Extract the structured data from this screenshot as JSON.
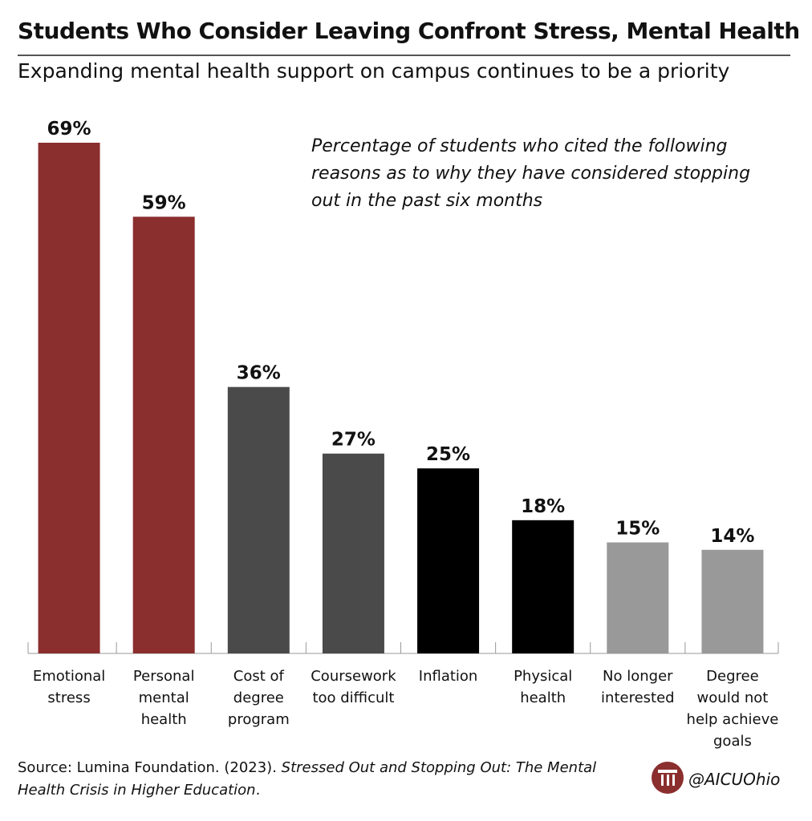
{
  "chart_data": {
    "type": "bar",
    "title": "Students Who Consider Leaving Confront Stress, Mental Health",
    "subtitle": "Expanding mental health support on campus continues to be a priority",
    "annotation": "Percentage of students who cited the following reasons as to why they have considered stopping out in the past six months",
    "categories": [
      [
        "Emotional",
        "stress"
      ],
      [
        "Personal",
        "mental",
        "health"
      ],
      [
        "Cost of",
        "degree",
        "program"
      ],
      [
        "Coursework",
        "too difficult"
      ],
      [
        "Inflation"
      ],
      [
        "Physical",
        "health"
      ],
      [
        "No longer",
        "interested"
      ],
      [
        "Degree",
        "would not",
        "help achieve",
        "goals"
      ]
    ],
    "values": [
      69,
      59,
      36,
      27,
      25,
      18,
      15,
      14
    ],
    "value_labels": [
      "69%",
      "59%",
      "36%",
      "27%",
      "25%",
      "18%",
      "15%",
      "14%"
    ],
    "colors": [
      "#8b2e2e",
      "#8b2e2e",
      "#4a4a4a",
      "#4a4a4a",
      "#000000",
      "#000000",
      "#999999",
      "#999999"
    ],
    "source": {
      "text": "Source: Lumina Foundation. (2023).",
      "italic": "Stressed Out and Stopping Out: The Mental Health Crisis in Higher Education",
      "end": "."
    },
    "handle": "@AICUOhio"
  }
}
